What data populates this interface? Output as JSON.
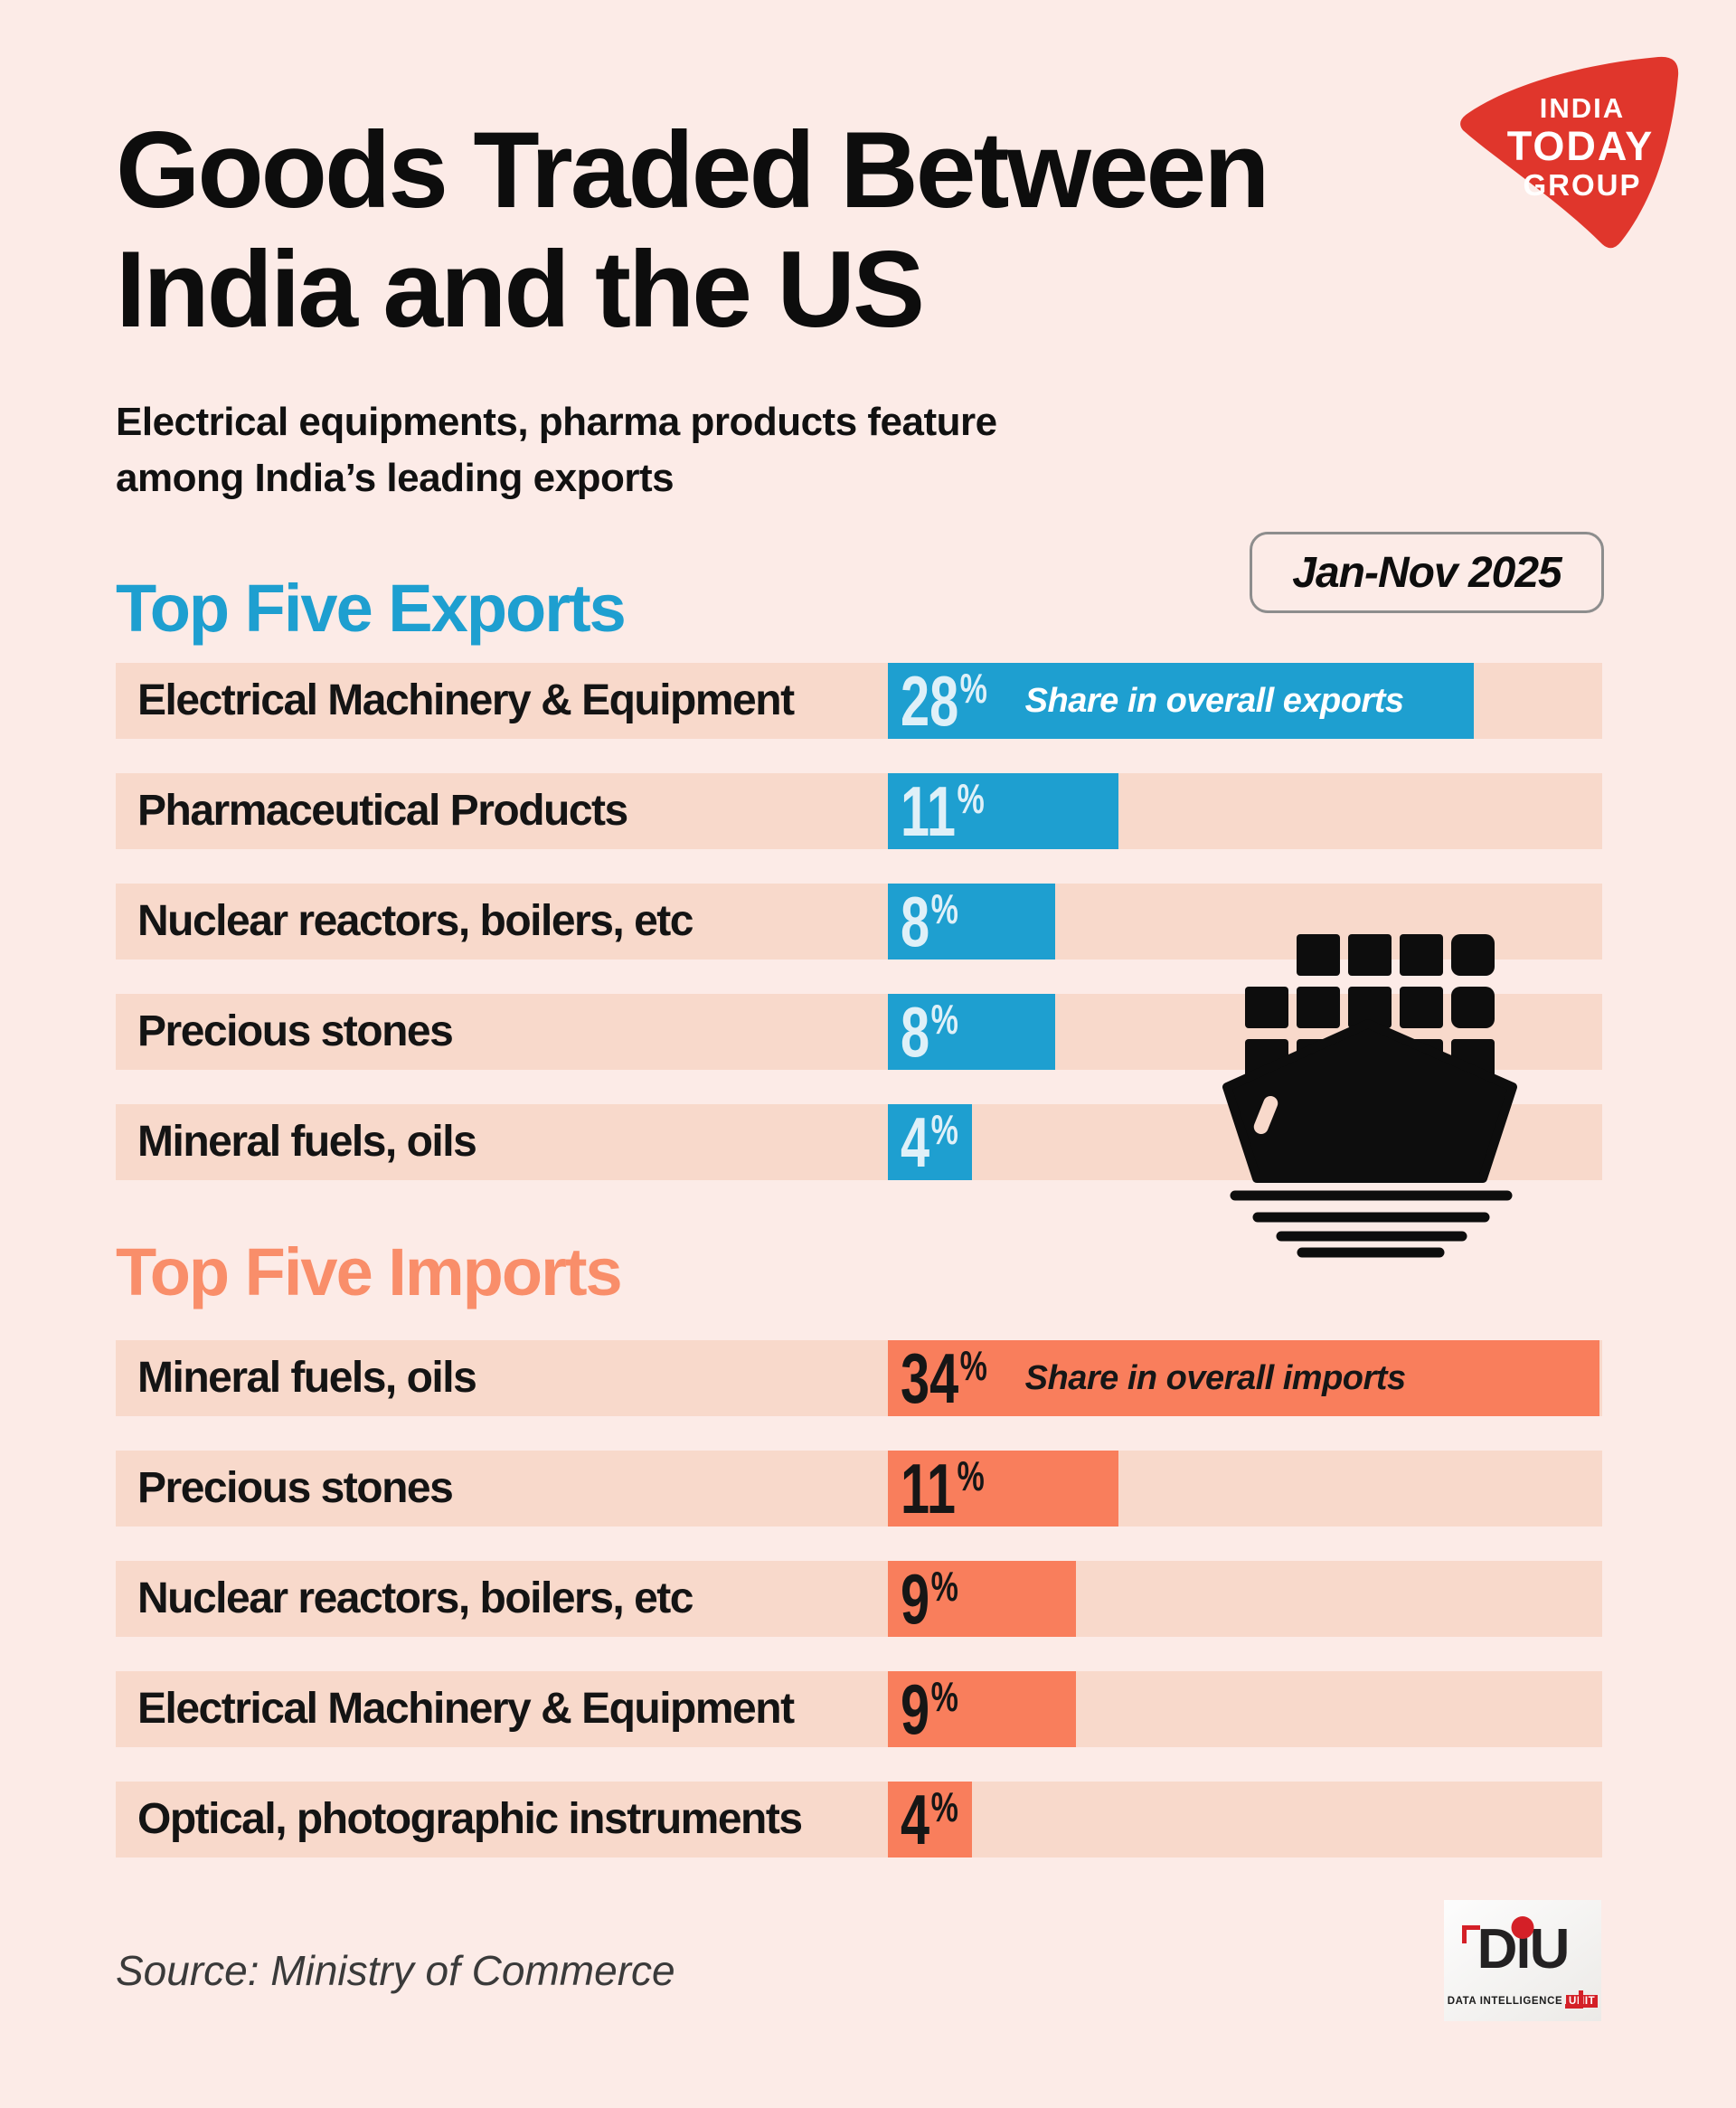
{
  "page": {
    "title_line1": "Goods Traded Between",
    "title_line2": "India and the US",
    "subtitle_line1": "Electrical equipments, pharma products feature",
    "subtitle_line2": "among India’s leading exports",
    "source": "Source: Ministry of Commerce"
  },
  "badge": {
    "label": "Jan-Nov 2025"
  },
  "branding": {
    "india_today_group": {
      "lines": [
        "INDIA",
        "TODAY",
        "GROUP"
      ],
      "bg_color": "#E0362C",
      "text_color": "#FFFFFF"
    },
    "diu": {
      "letters": [
        "D",
        "i",
        "U"
      ],
      "caption_prefix": "DATA INTELLIGENCE",
      "caption_highlight": "UNIT",
      "accent_color": "#D42027"
    }
  },
  "icons": {
    "ship": "cargo-ship-icon"
  },
  "colors": {
    "page_bg": "#FCEBE7",
    "row_band": "#F8D9CB",
    "export_accent": "#1E9FD0",
    "import_accent": "#F97E5C",
    "import_heading": "#F98E6A",
    "export_number_text": "#DFF0F8",
    "title_text": "#0D0D0D"
  },
  "chart_data": [
    {
      "type": "bar",
      "orientation": "horizontal",
      "title": "Top Five Exports",
      "categories": [
        "Electrical Machinery & Equipment",
        "Pharmaceutical Products",
        "Nuclear reactors, boilers, etc",
        "Precious stones",
        "Mineral fuels, oils"
      ],
      "values": [
        28,
        11,
        8,
        8,
        4
      ],
      "unit": "%",
      "annotation": "Share in overall exports",
      "bar_color": "#1E9FD0",
      "xlim": [
        0,
        34
      ],
      "grid": false,
      "legend": false
    },
    {
      "type": "bar",
      "orientation": "horizontal",
      "title": "Top Five Imports",
      "categories": [
        "Mineral fuels, oils",
        "Precious stones",
        "Nuclear reactors, boilers, etc",
        "Electrical Machinery & Equipment",
        "Optical, photographic instruments"
      ],
      "values": [
        34,
        11,
        9,
        9,
        4
      ],
      "unit": "%",
      "annotation": "Share in overall imports",
      "bar_color": "#F97E5C",
      "xlim": [
        0,
        34
      ],
      "grid": false,
      "legend": false
    }
  ]
}
